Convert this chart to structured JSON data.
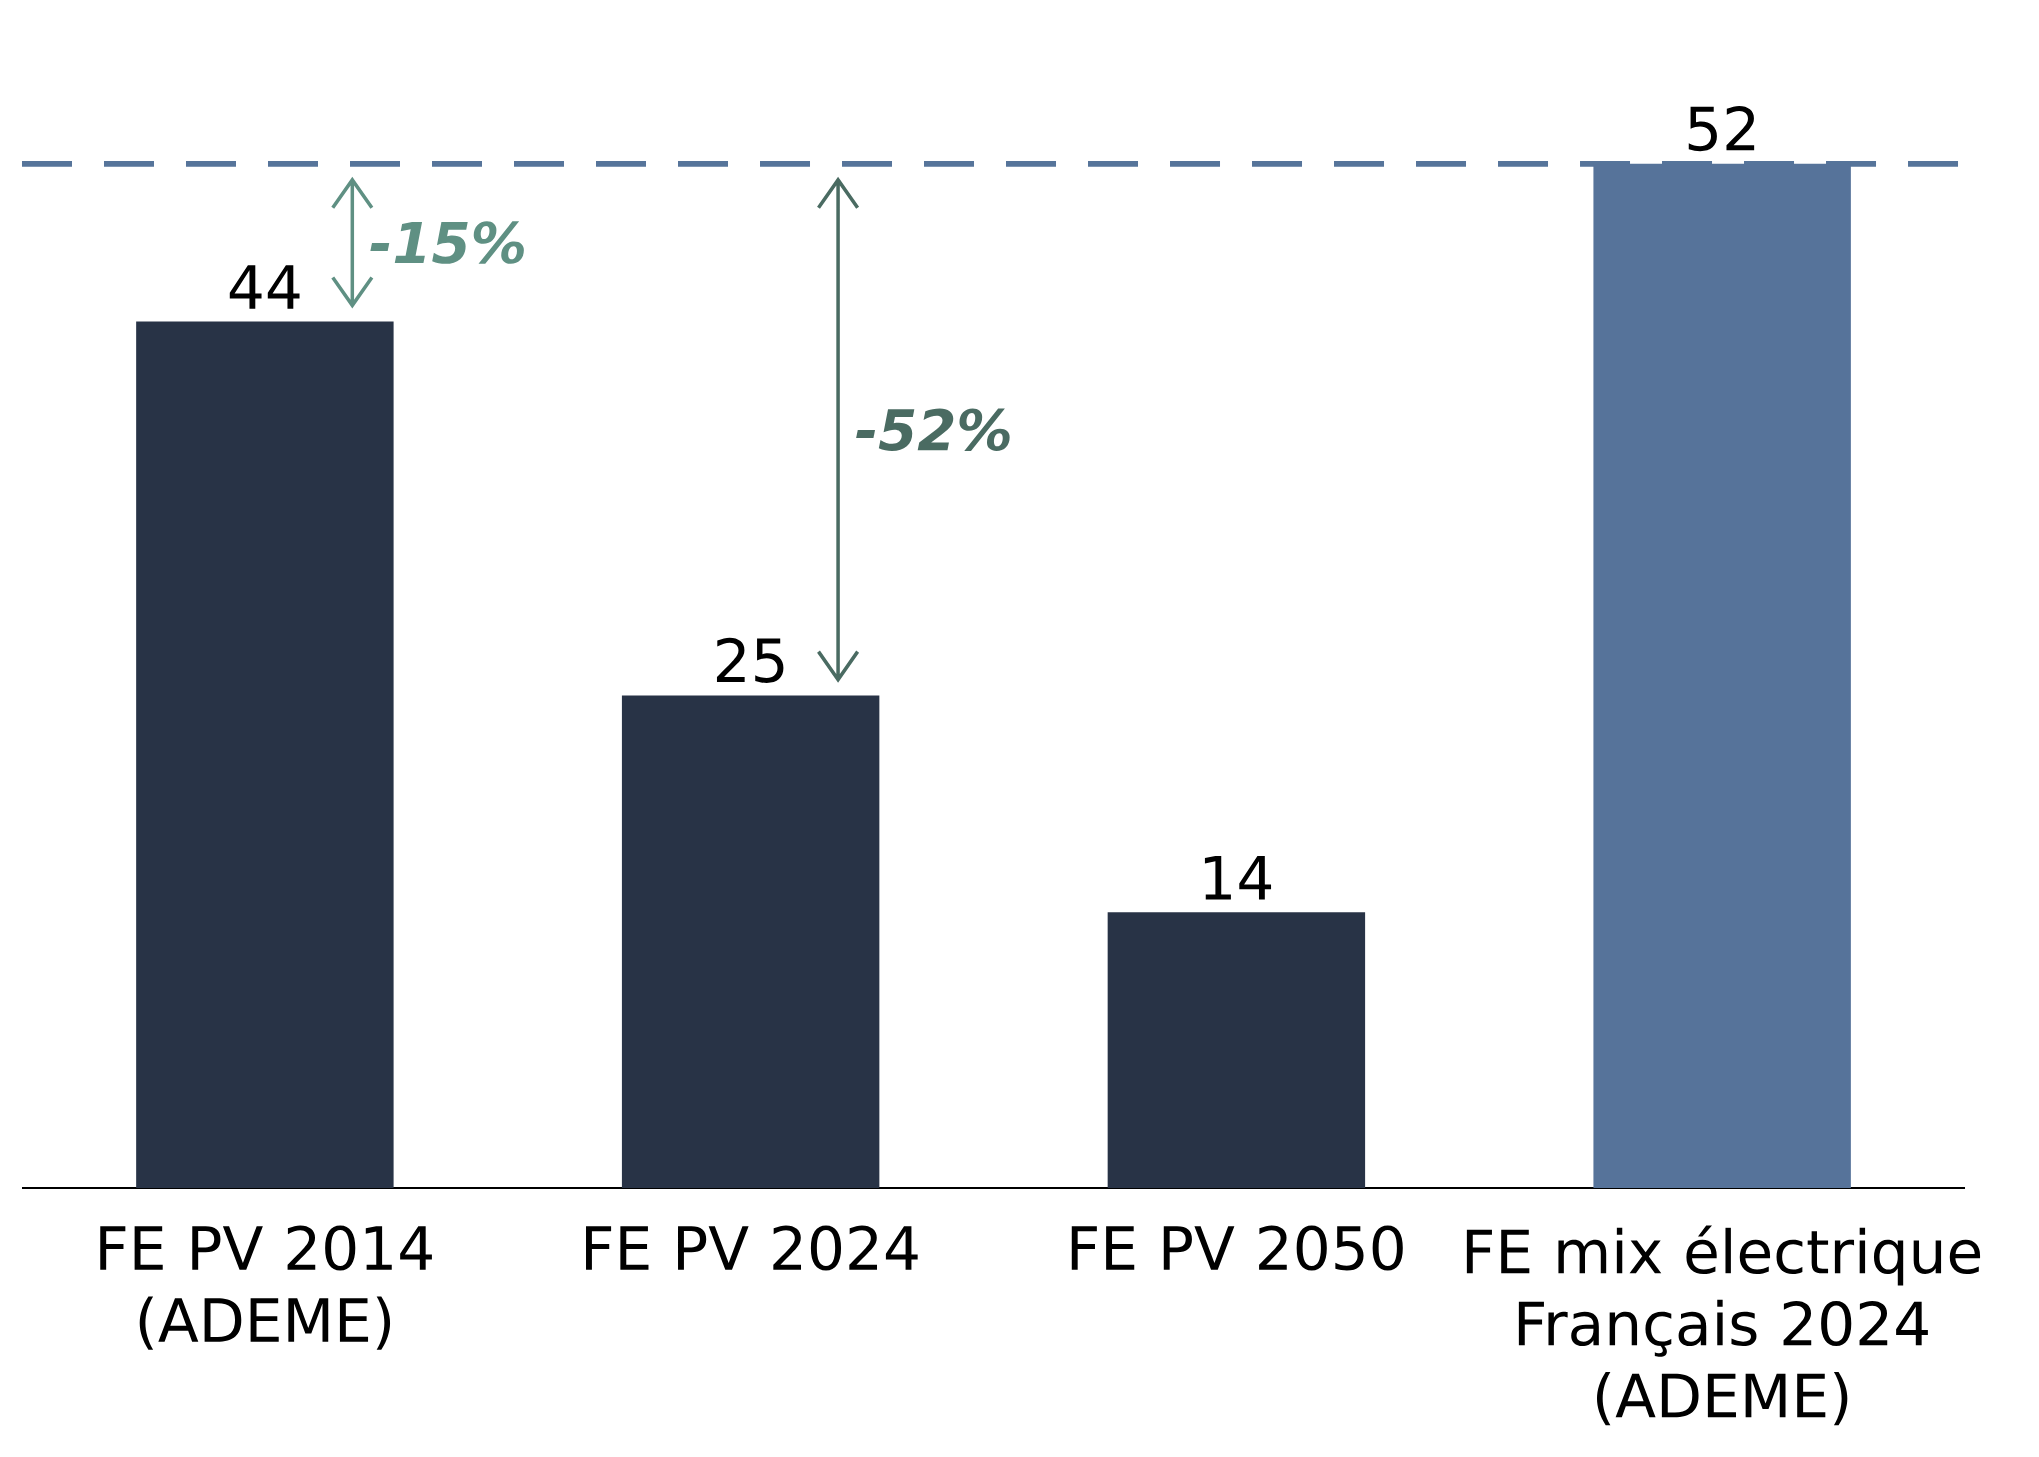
{
  "chart_data": {
    "type": "bar",
    "categories": [
      "FE PV 2014 (ADEME)",
      "FE PV 2024",
      "FE PV 2050",
      "FE mix électrique Français 2024 (ADEME)"
    ],
    "values": [
      44,
      25,
      14,
      52
    ],
    "colors": [
      "#283346",
      "#283346",
      "#283346",
      "#56739a"
    ],
    "data_labels": true,
    "tick_labels": "x",
    "ref_lines": [
      {
        "axis": "y",
        "value": 52,
        "color": "#56749a",
        "line_style": "dashed"
      }
    ],
    "annotations": [
      "-15%",
      "-52%"
    ]
  }
}
